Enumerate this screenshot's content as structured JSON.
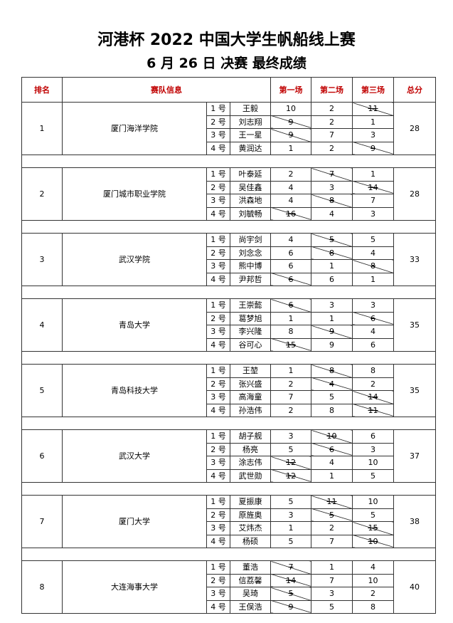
{
  "title": "河港杯 2022 中国大学生帆船线上赛",
  "subtitle": "6 月 26 日 决赛 最终成绩",
  "headers": {
    "rank": "排名",
    "team": "赛队信息",
    "race1": "第一场",
    "race2": "第二场",
    "race3": "第三场",
    "total": "总分"
  },
  "header_color": "#c00000",
  "teams": [
    {
      "rank": "1",
      "school": "厦门海洋学院",
      "total": "28",
      "members": [
        {
          "no": "1 号",
          "name": "王毅",
          "scores": [
            "10",
            "2",
            "11"
          ],
          "dropped": [
            2
          ]
        },
        {
          "no": "2 号",
          "name": "刘志翔",
          "scores": [
            "9",
            "2",
            "1"
          ],
          "dropped": [
            0
          ]
        },
        {
          "no": "3 号",
          "name": "王一星",
          "scores": [
            "9",
            "7",
            "3"
          ],
          "dropped": [
            0
          ]
        },
        {
          "no": "4 号",
          "name": "黄润达",
          "scores": [
            "1",
            "2",
            "9"
          ],
          "dropped": [
            2
          ]
        }
      ]
    },
    {
      "rank": "2",
      "school": "厦门城市职业学院",
      "total": "28",
      "members": [
        {
          "no": "1 号",
          "name": "叶泰延",
          "scores": [
            "2",
            "7",
            "1"
          ],
          "dropped": [
            1
          ]
        },
        {
          "no": "2 号",
          "name": "吴佳鑫",
          "scores": [
            "4",
            "3",
            "14"
          ],
          "dropped": [
            2
          ]
        },
        {
          "no": "3 号",
          "name": "洪森地",
          "scores": [
            "4",
            "8",
            "7"
          ],
          "dropped": [
            1
          ]
        },
        {
          "no": "4 号",
          "name": "刘毓畅",
          "scores": [
            "16",
            "4",
            "3"
          ],
          "dropped": [
            0
          ]
        }
      ]
    },
    {
      "rank": "3",
      "school": "武汉学院",
      "total": "33",
      "members": [
        {
          "no": "1 号",
          "name": "尚宇剑",
          "scores": [
            "4",
            "5",
            "5"
          ],
          "dropped": [
            1
          ]
        },
        {
          "no": "2 号",
          "name": "刘念念",
          "scores": [
            "6",
            "8",
            "4"
          ],
          "dropped": [
            1
          ]
        },
        {
          "no": "3 号",
          "name": "熊中博",
          "scores": [
            "6",
            "1",
            "8"
          ],
          "dropped": [
            2
          ]
        },
        {
          "no": "4 号",
          "name": "尹邦哲",
          "scores": [
            "6",
            "6",
            "1"
          ],
          "dropped": [
            0
          ]
        }
      ]
    },
    {
      "rank": "4",
      "school": "青岛大学",
      "total": "35",
      "members": [
        {
          "no": "1 号",
          "name": "王崇懿",
          "scores": [
            "6",
            "3",
            "3"
          ],
          "dropped": [
            0
          ]
        },
        {
          "no": "2 号",
          "name": "葛梦旭",
          "scores": [
            "1",
            "1",
            "6"
          ],
          "dropped": [
            2
          ]
        },
        {
          "no": "3 号",
          "name": "李兴隆",
          "scores": [
            "8",
            "9",
            "4"
          ],
          "dropped": [
            1
          ]
        },
        {
          "no": "4 号",
          "name": "谷可心",
          "scores": [
            "15",
            "9",
            "6"
          ],
          "dropped": [
            0
          ]
        }
      ]
    },
    {
      "rank": "5",
      "school": "青岛科技大学",
      "total": "35",
      "members": [
        {
          "no": "1 号",
          "name": "王堃",
          "scores": [
            "1",
            "8",
            "8"
          ],
          "dropped": [
            1
          ]
        },
        {
          "no": "2 号",
          "name": "张兴盛",
          "scores": [
            "2",
            "4",
            "2"
          ],
          "dropped": [
            1
          ]
        },
        {
          "no": "3 号",
          "name": "高海童",
          "scores": [
            "7",
            "5",
            "14"
          ],
          "dropped": [
            2
          ]
        },
        {
          "no": "4 号",
          "name": "孙浩伟",
          "scores": [
            "2",
            "8",
            "11"
          ],
          "dropped": [
            2
          ]
        }
      ]
    },
    {
      "rank": "6",
      "school": "武汉大学",
      "total": "37",
      "members": [
        {
          "no": "1 号",
          "name": "胡子舰",
          "scores": [
            "3",
            "10",
            "6"
          ],
          "dropped": [
            1
          ]
        },
        {
          "no": "2 号",
          "name": "杨亮",
          "scores": [
            "5",
            "6",
            "3"
          ],
          "dropped": [
            1
          ]
        },
        {
          "no": "3 号",
          "name": "涂志伟",
          "scores": [
            "12",
            "4",
            "10"
          ],
          "dropped": [
            0
          ]
        },
        {
          "no": "4 号",
          "name": "武世勋",
          "scores": [
            "12",
            "1",
            "5"
          ],
          "dropped": [
            0
          ]
        }
      ]
    },
    {
      "rank": "7",
      "school": "厦门大学",
      "total": "38",
      "members": [
        {
          "no": "1 号",
          "name": "夏振康",
          "scores": [
            "5",
            "11",
            "10"
          ],
          "dropped": [
            1
          ]
        },
        {
          "no": "2 号",
          "name": "原旌奥",
          "scores": [
            "3",
            "5",
            "5"
          ],
          "dropped": [
            1
          ]
        },
        {
          "no": "3 号",
          "name": "艾炜杰",
          "scores": [
            "1",
            "2",
            "15"
          ],
          "dropped": [
            2
          ]
        },
        {
          "no": "4 号",
          "name": "杨硕",
          "scores": [
            "5",
            "7",
            "10"
          ],
          "dropped": [
            2
          ]
        }
      ]
    },
    {
      "rank": "8",
      "school": "大连海事大学",
      "total": "40",
      "members": [
        {
          "no": "1 号",
          "name": "董浩",
          "scores": [
            "7",
            "1",
            "4"
          ],
          "dropped": [
            0
          ]
        },
        {
          "no": "2 号",
          "name": "信荔馨",
          "scores": [
            "14",
            "7",
            "10"
          ],
          "dropped": [
            0
          ]
        },
        {
          "no": "3 号",
          "name": "吴琦",
          "scores": [
            "5",
            "3",
            "2"
          ],
          "dropped": [
            0
          ]
        },
        {
          "no": "4 号",
          "name": "王俣浩",
          "scores": [
            "9",
            "5",
            "8"
          ],
          "dropped": [
            0
          ]
        }
      ]
    }
  ]
}
